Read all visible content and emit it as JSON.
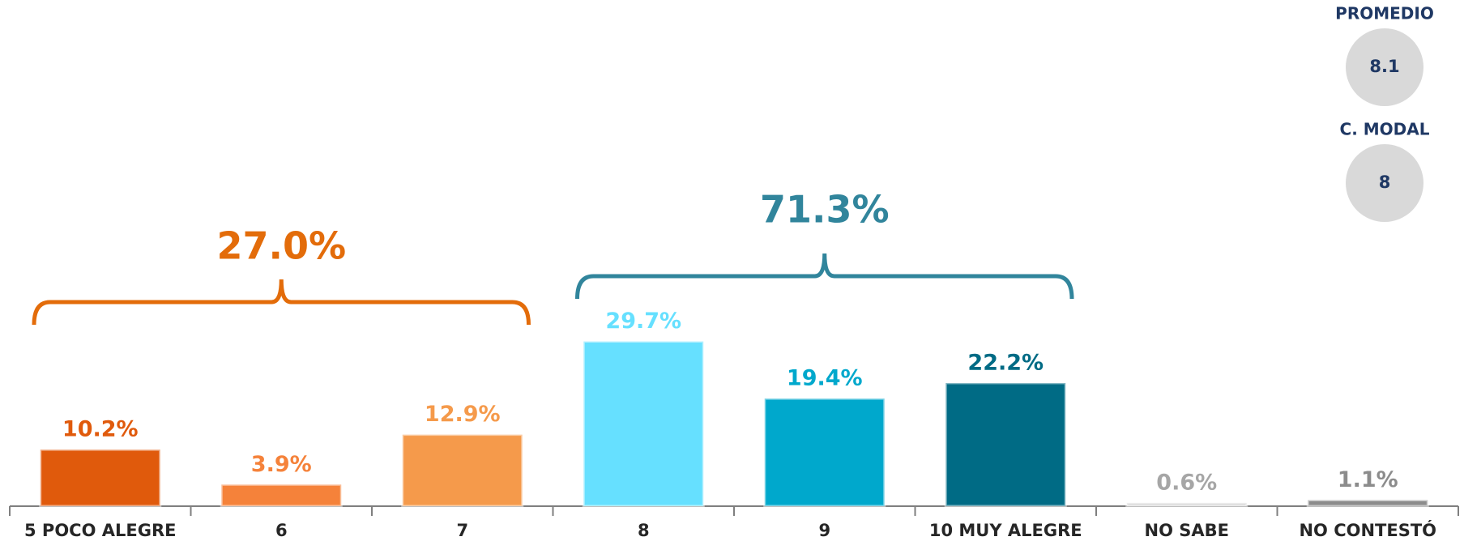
{
  "chart_data": {
    "type": "bar",
    "categories": [
      "5 POCO ALEGRE",
      "6",
      "7",
      "8",
      "9",
      "10 MUY ALEGRE",
      "NO SABE",
      "NO CONTESTÓ"
    ],
    "values": [
      10.2,
      3.9,
      12.9,
      29.7,
      19.4,
      22.2,
      0.6,
      1.1
    ],
    "value_labels": [
      "10.2%",
      "3.9%",
      "12.9%",
      "29.7%",
      "19.4%",
      "22.2%",
      "0.6%",
      "1.1%"
    ],
    "colors": [
      "#e05a0c",
      "#f5823a",
      "#f59a4b",
      "#66e0ff",
      "#00a8cc",
      "#006b85",
      "#d9d9d9",
      "#8c8c8c"
    ],
    "label_colors": [
      "#e05a0c",
      "#f5823a",
      "#f59a4b",
      "#66e0ff",
      "#00a8cc",
      "#006b85",
      "#a6a6a6",
      "#8c8c8c"
    ],
    "annotations": [
      {
        "text": "27.0%",
        "color": "#e36c0a"
      },
      {
        "text": "71.3%",
        "color": "#31859c"
      }
    ],
    "stats": [
      {
        "label": "PROMEDIO",
        "value": "8.1"
      },
      {
        "label": "C. MODAL",
        "value": "8"
      }
    ]
  }
}
